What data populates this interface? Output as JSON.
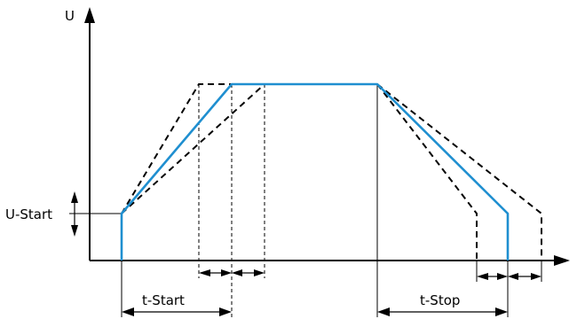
{
  "labels": {
    "y_axis": "U",
    "u_start": "U-Start",
    "t_start": "t-Start",
    "t_stop": "t-Stop"
  },
  "colors": {
    "ramp": "#1f8fd0",
    "lines": "#000000",
    "background": "#ffffff"
  }
}
